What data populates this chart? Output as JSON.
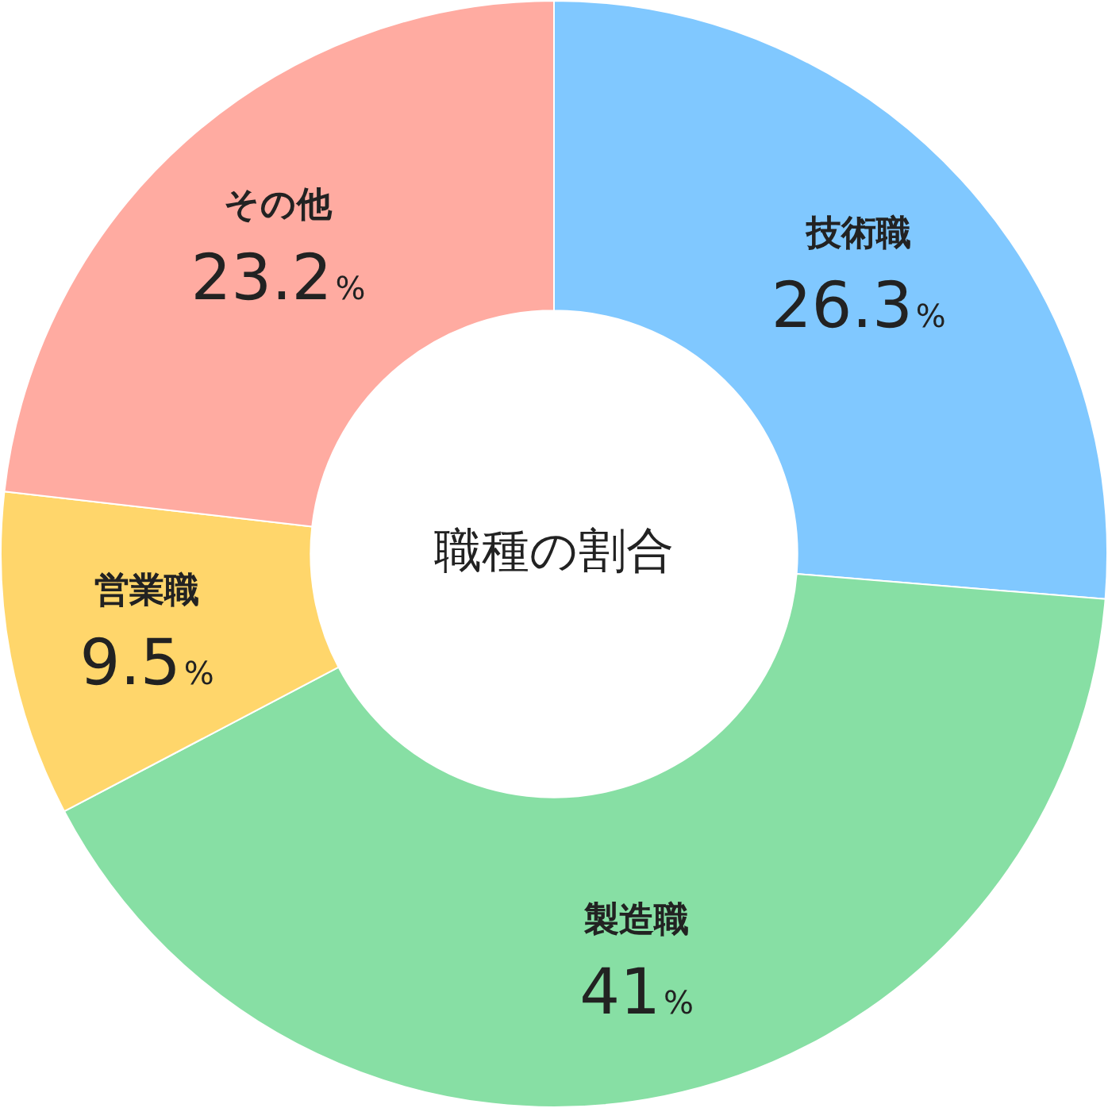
{
  "chart_data": {
    "type": "donut",
    "title": "職種の割合",
    "categories": [
      "技術職",
      "製造職",
      "営業職",
      "その他"
    ],
    "values": [
      26.3,
      41,
      9.5,
      23.2
    ],
    "value_labels": [
      "26.3%",
      "41%",
      "9.5%",
      "23.2%"
    ],
    "colors": [
      "#80c8ff",
      "#87dfa4",
      "#ffd66b",
      "#ffaba1"
    ],
    "legend": false
  }
}
